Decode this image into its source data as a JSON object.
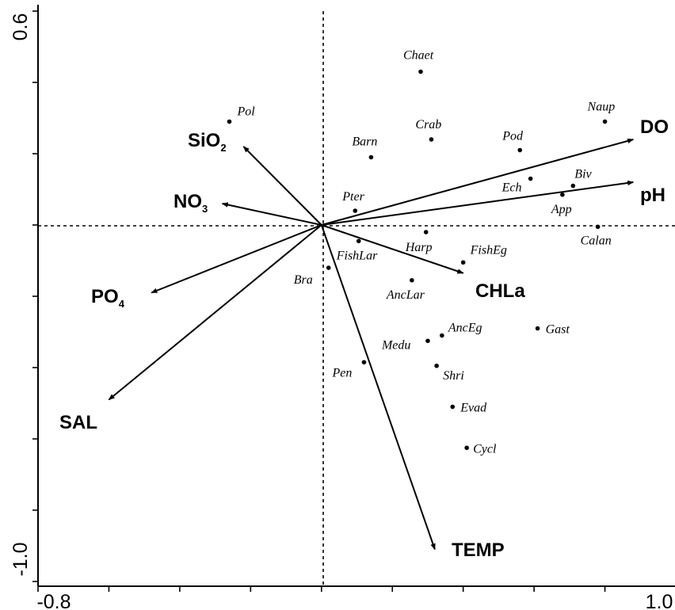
{
  "chart_data": {
    "type": "scatter",
    "title": "",
    "xlabel": "",
    "ylabel": "",
    "xlim": [
      -0.8,
      1.0
    ],
    "ylim": [
      -1.0,
      0.6
    ],
    "x_tick_labels": [
      "-0.8",
      "1.0"
    ],
    "y_tick_labels": [
      "0.6",
      "-1.0"
    ],
    "grid": false,
    "zero_lines": true,
    "species_points": [
      {
        "name": "Chaet",
        "x": 0.28,
        "y": 0.43
      },
      {
        "name": "Pol",
        "x": -0.26,
        "y": 0.29
      },
      {
        "name": "Naup",
        "x": 0.8,
        "y": 0.29
      },
      {
        "name": "Crab",
        "x": 0.31,
        "y": 0.24
      },
      {
        "name": "Pod",
        "x": 0.56,
        "y": 0.21
      },
      {
        "name": "Barn",
        "x": 0.14,
        "y": 0.19
      },
      {
        "name": "Ech",
        "x": 0.59,
        "y": 0.13
      },
      {
        "name": "Biv",
        "x": 0.71,
        "y": 0.11
      },
      {
        "name": "App",
        "x": 0.68,
        "y": 0.085
      },
      {
        "name": "Pter",
        "x": 0.095,
        "y": 0.04
      },
      {
        "name": "Calan",
        "x": 0.78,
        "y": -0.005
      },
      {
        "name": "Harp",
        "x": 0.295,
        "y": -0.02
      },
      {
        "name": "FishLar",
        "x": 0.105,
        "y": -0.045
      },
      {
        "name": "FishEg",
        "x": 0.4,
        "y": -0.105
      },
      {
        "name": "Bra",
        "x": 0.02,
        "y": -0.12
      },
      {
        "name": "AncLar",
        "x": 0.255,
        "y": -0.155
      },
      {
        "name": "Gast",
        "x": 0.61,
        "y": -0.29
      },
      {
        "name": "AncEg",
        "x": 0.34,
        "y": -0.31
      },
      {
        "name": "Medu",
        "x": 0.3,
        "y": -0.325
      },
      {
        "name": "Pen",
        "x": 0.12,
        "y": -0.385
      },
      {
        "name": "Shri",
        "x": 0.325,
        "y": -0.395
      },
      {
        "name": "Evad",
        "x": 0.37,
        "y": -0.51
      },
      {
        "name": "Cycl",
        "x": 0.41,
        "y": -0.625
      }
    ],
    "env_vectors": [
      {
        "name": "DO",
        "x": 0.88,
        "y": 0.24
      },
      {
        "name": "pH",
        "x": 0.88,
        "y": 0.12
      },
      {
        "name": "CHLa",
        "x": 0.4,
        "y": -0.135
      },
      {
        "name": "TEMP",
        "x": 0.32,
        "y": -0.91
      },
      {
        "name": "SAL",
        "x": -0.6,
        "y": -0.49
      },
      {
        "name": "PO4",
        "x": -0.48,
        "y": -0.19
      },
      {
        "name": "NO3",
        "x": -0.28,
        "y": 0.06
      },
      {
        "name": "SiO2",
        "x": -0.22,
        "y": 0.22
      }
    ]
  }
}
